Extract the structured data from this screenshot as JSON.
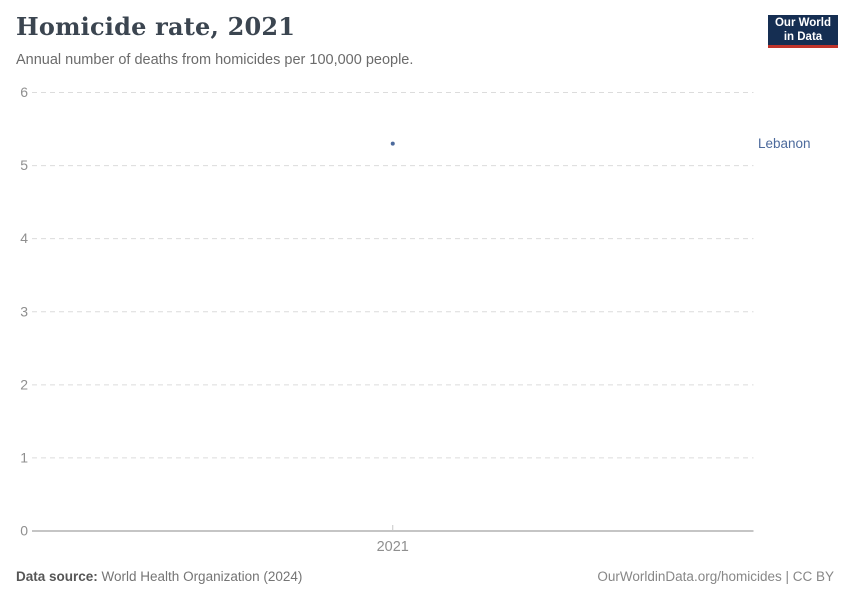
{
  "header": {
    "title": "Homicide rate, 2021",
    "subtitle": "Annual number of deaths from homicides per 100,000 people.",
    "logo": {
      "line1": "Our World",
      "line2": "in Data"
    }
  },
  "chart_data": {
    "type": "scatter",
    "title": "Homicide rate, 2021",
    "x": [
      2021
    ],
    "xticks": [
      2021
    ],
    "series": [
      {
        "name": "Lebanon",
        "values": [
          5.3
        ]
      }
    ],
    "xlabel": "",
    "ylabel": "",
    "ylim": [
      0,
      6
    ],
    "yticks": [
      0,
      1,
      2,
      3,
      4,
      5,
      6
    ],
    "grid": "horizontal-dashed",
    "legend_position": "right-of-point"
  },
  "colors": {
    "series_blue": "#4c6a9c",
    "logo_navy": "#152e52",
    "logo_red": "#c0342b",
    "grid_gray": "#dcdcdc",
    "axis_gray": "#8b8b8b",
    "tick_label_gray": "#8f8f8f"
  },
  "footer": {
    "source_label": "Data source:",
    "source_value": " World Health Organization (2024)",
    "credit": "OurWorldinData.org/homicides | CC BY"
  }
}
